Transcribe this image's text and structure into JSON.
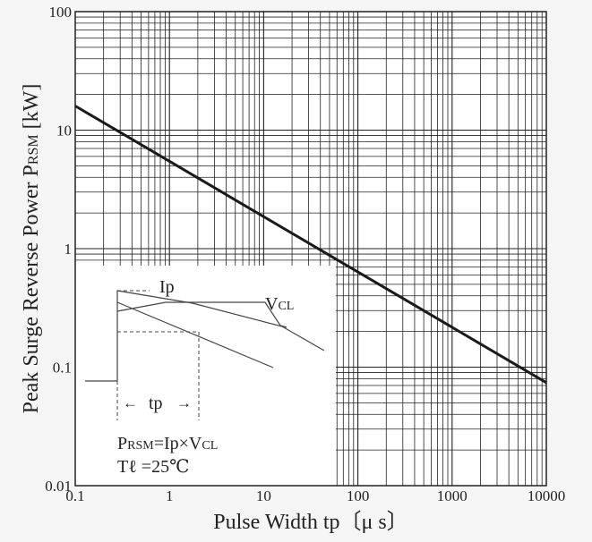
{
  "chart_data": {
    "type": "line",
    "title": "",
    "xlabel": "Pulse Width tp〔μ s〕",
    "ylabel_main": "Peak Surge Reverse Power P",
    "ylabel_sub": "RSM",
    "ylabel_unit": " [kW]",
    "xscale": "log",
    "yscale": "log",
    "xlim": [
      0.1,
      10000
    ],
    "ylim": [
      0.01,
      100
    ],
    "grid": true,
    "x_ticks": [
      {
        "value": 0.1,
        "label": "0.1"
      },
      {
        "value": 1,
        "label": "1"
      },
      {
        "value": 10,
        "label": "10"
      },
      {
        "value": 100,
        "label": "100"
      },
      {
        "value": 1000,
        "label": "1000"
      },
      {
        "value": 10000,
        "label": "10000"
      }
    ],
    "y_ticks": [
      {
        "value": 0.01,
        "label": "0.01"
      },
      {
        "value": 0.1,
        "label": "0.1"
      },
      {
        "value": 1,
        "label": "1"
      },
      {
        "value": 10,
        "label": "10"
      },
      {
        "value": 100,
        "label": "100"
      }
    ],
    "series": [
      {
        "x": [
          0.1,
          10000
        ],
        "y": [
          16,
          0.074
        ]
      }
    ]
  },
  "inset": {
    "label_ip": "Ip",
    "label_vcl_main": "V",
    "label_vcl_sub": "CL",
    "label_tp": "tp",
    "arrow_left": "←",
    "arrow_right": "→",
    "formula_p": "P",
    "formula_p_sub": "RSM",
    "formula_eq": "=Ip×V",
    "formula_cl_sub": "CL",
    "temperature": "Tℓ =25℃"
  }
}
